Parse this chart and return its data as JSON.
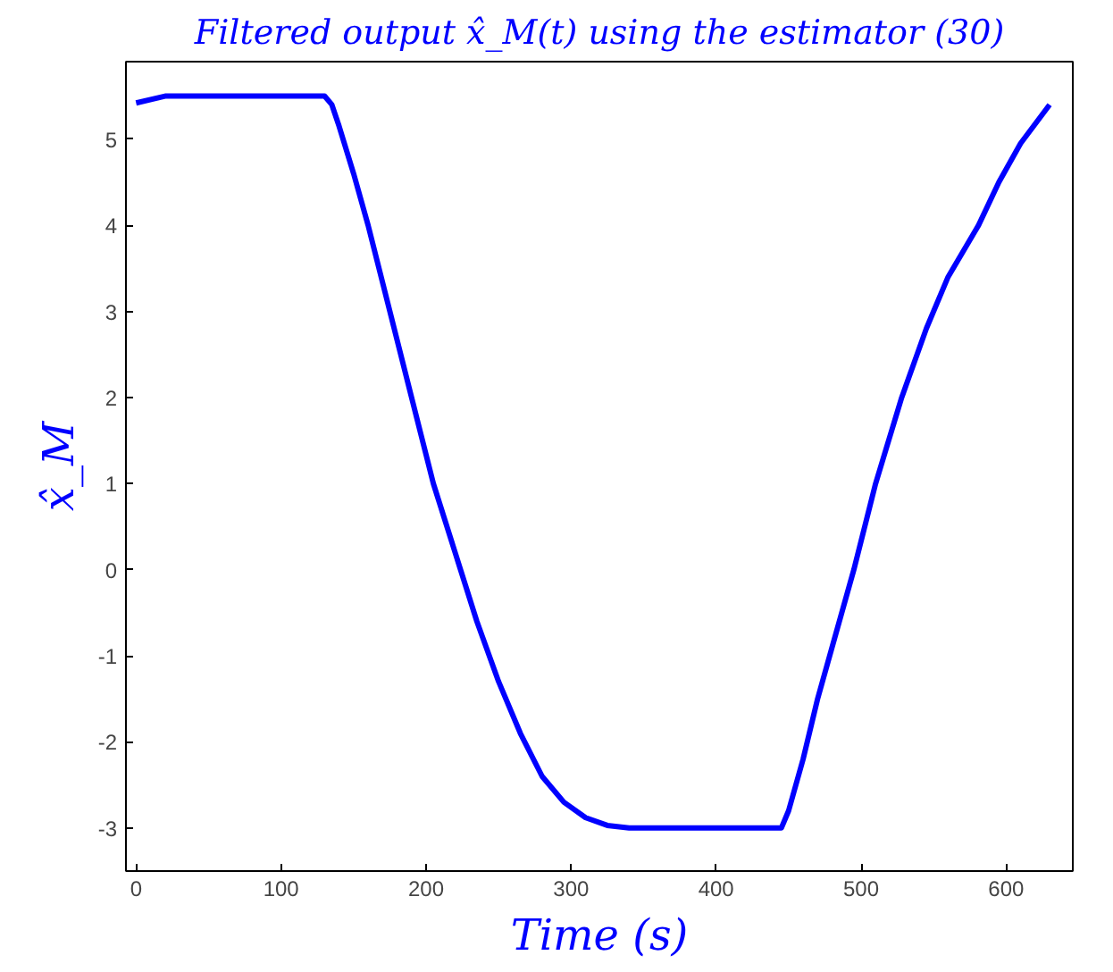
{
  "chart_data": {
    "type": "line",
    "title": "Filtered output x̂_M(t) using the estimator (30)",
    "xlabel": "Time (s)",
    "ylabel": "x̂_M",
    "xlim": [
      -7,
      646
    ],
    "ylim": [
      -3.5,
      5.9
    ],
    "xticks": [
      0,
      100,
      200,
      300,
      400,
      500,
      600
    ],
    "yticks": [
      -3,
      -2,
      -1,
      0,
      1,
      2,
      3,
      4,
      5
    ],
    "grid": false,
    "series": [
      {
        "color": "#0000ff",
        "x": [
          0,
          20,
          60,
          100,
          130,
          135,
          140,
          150,
          160,
          175,
          190,
          205,
          220,
          235,
          250,
          265,
          280,
          295,
          310,
          325,
          340,
          380,
          420,
          445,
          450,
          460,
          470,
          480,
          495,
          510,
          528,
          545,
          560,
          581,
          595,
          610,
          630
        ],
        "values": [
          5.42,
          5.5,
          5.5,
          5.5,
          5.5,
          5.4,
          5.15,
          4.6,
          4.0,
          3.0,
          2.0,
          1.0,
          0.2,
          -0.6,
          -1.3,
          -1.9,
          -2.4,
          -2.7,
          -2.88,
          -2.97,
          -3.0,
          -3.0,
          -3.0,
          -3.0,
          -2.8,
          -2.2,
          -1.5,
          -0.9,
          0.0,
          1.0,
          2.0,
          2.8,
          3.4,
          4.0,
          4.5,
          4.95,
          5.4
        ]
      }
    ]
  }
}
